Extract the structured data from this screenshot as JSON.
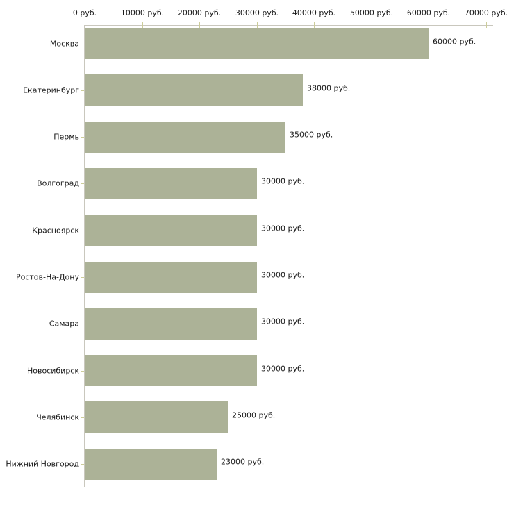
{
  "chart_data": {
    "type": "bar",
    "orientation": "horizontal",
    "title": "",
    "xlabel": "",
    "ylabel": "",
    "unit": "руб.",
    "categories": [
      "Москва",
      "Екатеринбург",
      "Пермь",
      "Волгоград",
      "Красноярск",
      "Ростов-На-Дону",
      "Самара",
      "Новосибирск",
      "Челябинск",
      "Нижний Новгород"
    ],
    "values": [
      60000,
      38000,
      35000,
      30000,
      30000,
      30000,
      30000,
      30000,
      25000,
      23000
    ],
    "value_labels": [
      "60000 руб.",
      "38000 руб.",
      "35000 руб.",
      "30000 руб.",
      "30000 руб.",
      "30000 руб.",
      "30000 руб.",
      "30000 руб.",
      "25000 руб.",
      "23000 руб."
    ],
    "xlim": [
      0,
      70000
    ],
    "x_ticks": [
      0,
      10000,
      20000,
      30000,
      40000,
      50000,
      60000,
      70000
    ],
    "x_tick_labels": [
      "0 руб.",
      "10000 руб.",
      "20000 руб.",
      "30000 руб.",
      "40000 руб.",
      "50000 руб.",
      "60000 руб.",
      "70000 руб."
    ],
    "axis_position": "top",
    "grid": false,
    "legend": false,
    "colors": {
      "bar_fill": "#acb297",
      "axis_line": "#c9c7bd",
      "tick_mark": "#cccc99",
      "text": "#1a1a1a",
      "background": "#ffffff"
    }
  }
}
